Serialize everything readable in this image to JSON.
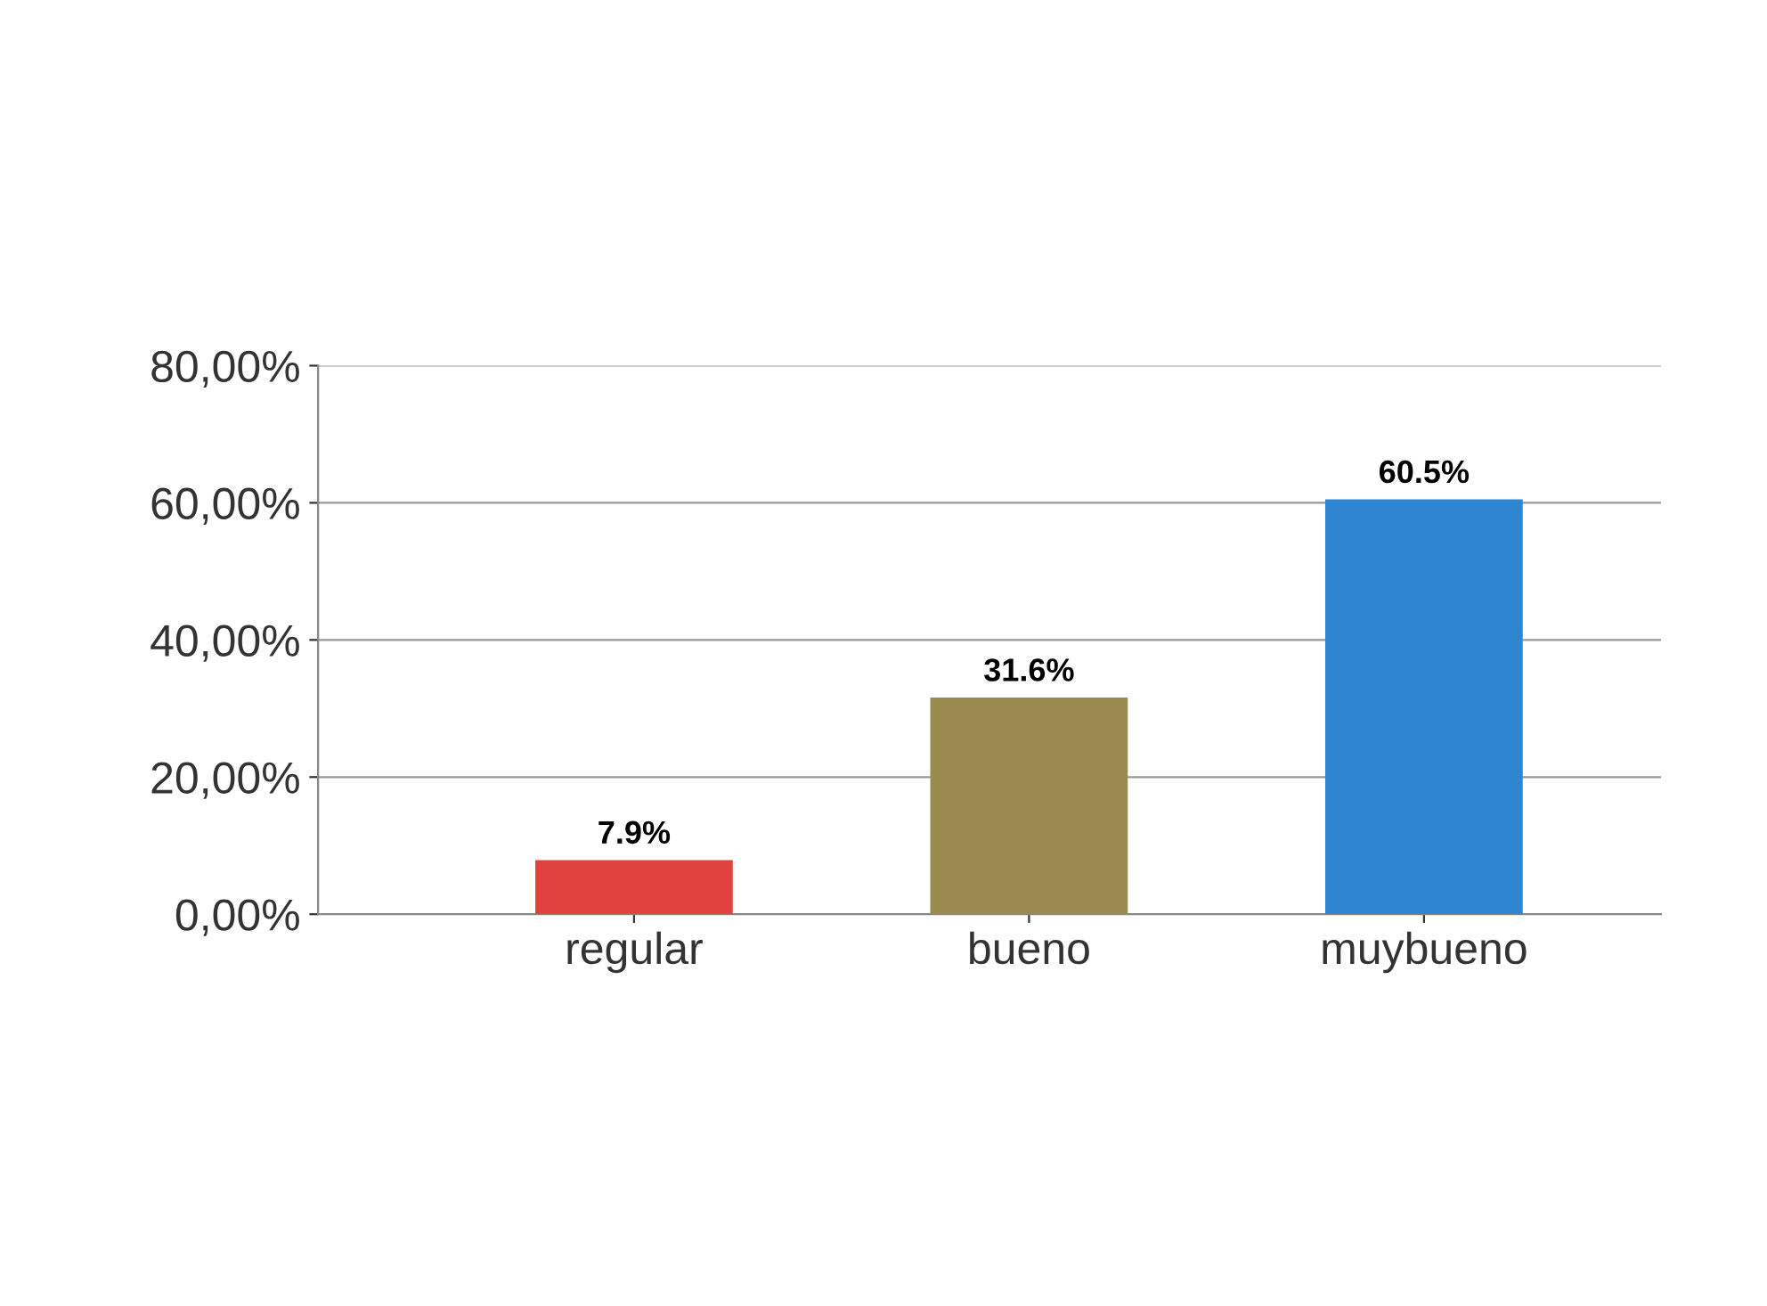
{
  "chart_data": {
    "type": "bar",
    "categories": [
      "regular",
      "bueno",
      "muybueno"
    ],
    "values": [
      7.9,
      31.6,
      60.5
    ],
    "colors": [
      "#e0433f",
      "#9a8a4e",
      "#2e86d0"
    ],
    "value_labels": [
      "7.9%",
      "31.6%",
      "60.5%"
    ],
    "ylim": [
      0,
      80
    ],
    "yticks": [
      {
        "value": 0,
        "label": "0,00%"
      },
      {
        "value": 20,
        "label": "20,00%"
      },
      {
        "value": 40,
        "label": "40,00%"
      },
      {
        "value": 60,
        "label": "60,00%"
      },
      {
        "value": 80,
        "label": "80,00%"
      }
    ],
    "grid": "y"
  }
}
